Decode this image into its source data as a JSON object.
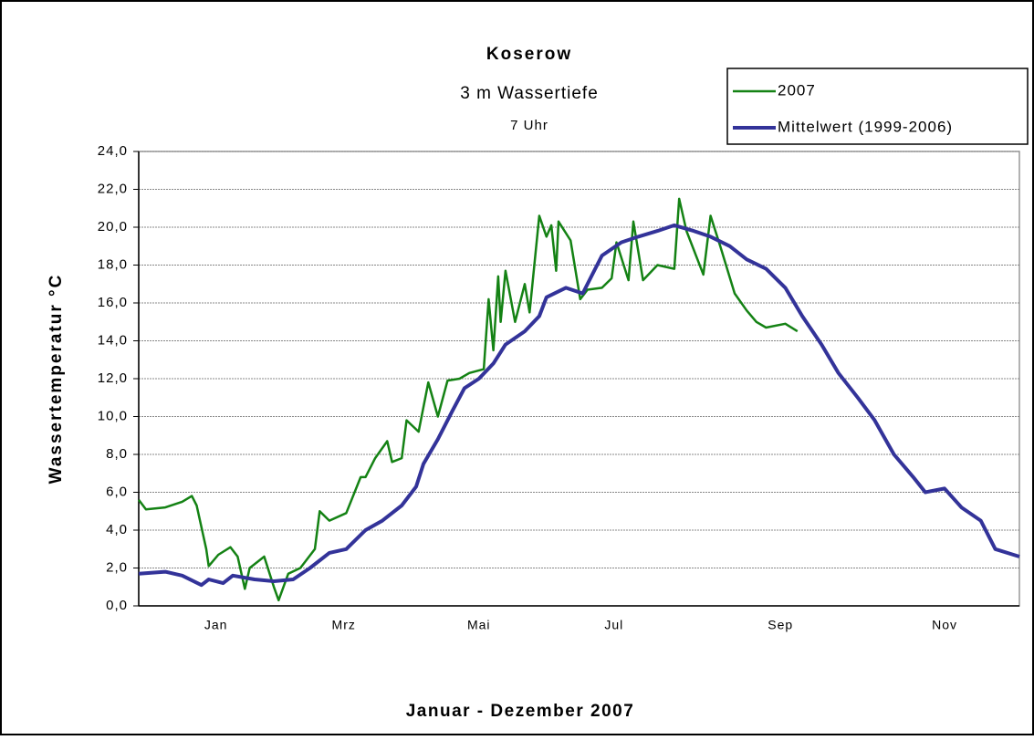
{
  "chart_data": {
    "type": "line",
    "title": "Koserow",
    "subtitle": "3 m Wassertiefe",
    "subtitle2": "7 Uhr",
    "y_label": "Wassertemperatur °C",
    "x_label": "Januar - Dezember 2007",
    "xlim": [
      0,
      365
    ],
    "xticks": [
      {
        "value": 32,
        "label": "Jan"
      },
      {
        "value": 85,
        "label": "Mrz"
      },
      {
        "value": 141,
        "label": "Mai"
      },
      {
        "value": 197,
        "label": "Jul"
      },
      {
        "value": 266,
        "label": "Sep"
      },
      {
        "value": 334,
        "label": "Nov"
      }
    ],
    "ylim": [
      0,
      24
    ],
    "yticks": [
      {
        "value": 0,
        "label": "0,0"
      },
      {
        "value": 2,
        "label": "2,0"
      },
      {
        "value": 4,
        "label": "4,0"
      },
      {
        "value": 6,
        "label": "6,0"
      },
      {
        "value": 8,
        "label": "8,0"
      },
      {
        "value": 10,
        "label": "10,0"
      },
      {
        "value": 12,
        "label": "12,0"
      },
      {
        "value": 14,
        "label": "14,0"
      },
      {
        "value": 16,
        "label": "16,0"
      },
      {
        "value": 18,
        "label": "18,0"
      },
      {
        "value": 20,
        "label": "20,0"
      },
      {
        "value": 22,
        "label": "22,0"
      },
      {
        "value": 24,
        "label": "24,0"
      }
    ],
    "grid": true,
    "legend": "top-right",
    "series": [
      {
        "name": "2007",
        "color": "#148214",
        "width": 2.5,
        "x": [
          0,
          3,
          11,
          18,
          22,
          24,
          28,
          29,
          33,
          38,
          41,
          44,
          46,
          52,
          56,
          58,
          62,
          67,
          73,
          75,
          79,
          86,
          92,
          94,
          98,
          103,
          105,
          109,
          111,
          116,
          120,
          124,
          128,
          133,
          137,
          143,
          145,
          147,
          149,
          150,
          152,
          156,
          160,
          162,
          166,
          169,
          171,
          173,
          174,
          179,
          183,
          186,
          192,
          196,
          198,
          203,
          205,
          209,
          215,
          222,
          224,
          227,
          234,
          237,
          241,
          247,
          252,
          256,
          260,
          268,
          273
        ],
        "values": [
          5.6,
          5.1,
          5.2,
          5.5,
          5.8,
          5.3,
          3.0,
          2.1,
          2.7,
          3.1,
          2.6,
          0.9,
          2.0,
          2.6,
          1.0,
          0.3,
          1.7,
          2.0,
          3.0,
          5.0,
          4.5,
          4.9,
          6.8,
          6.8,
          7.8,
          8.7,
          7.6,
          7.8,
          9.8,
          9.2,
          11.8,
          10.0,
          11.9,
          12.0,
          12.3,
          12.5,
          16.2,
          13.5,
          17.4,
          15.0,
          17.7,
          15.0,
          17.0,
          15.5,
          20.6,
          19.5,
          20.1,
          17.7,
          20.3,
          19.3,
          16.2,
          16.7,
          16.8,
          17.3,
          19.2,
          17.2,
          20.3,
          17.2,
          18.0,
          17.8,
          21.5,
          19.8,
          17.5,
          20.6,
          19.0,
          16.5,
          15.6,
          15.0,
          14.7,
          14.9,
          14.5
        ]
      },
      {
        "name": "Mittelwert (1999-2006)",
        "color": "#333399",
        "width": 4,
        "x": [
          0,
          11,
          18,
          26,
          29,
          35,
          39,
          48,
          56,
          64,
          71,
          79,
          86,
          94,
          101,
          109,
          115,
          118,
          124,
          130,
          135,
          141,
          147,
          152,
          160,
          166,
          169,
          177,
          184,
          188,
          192,
          200,
          207,
          215,
          222,
          230,
          237,
          245,
          252,
          260,
          268,
          275,
          283,
          290,
          298,
          305,
          313,
          321,
          326,
          334,
          341,
          349,
          355,
          365
        ],
        "values": [
          1.7,
          1.8,
          1.6,
          1.1,
          1.4,
          1.2,
          1.6,
          1.4,
          1.3,
          1.4,
          2.0,
          2.8,
          3.0,
          4.0,
          4.5,
          5.3,
          6.3,
          7.5,
          8.8,
          10.3,
          11.5,
          12.0,
          12.8,
          13.8,
          14.5,
          15.3,
          16.3,
          16.8,
          16.5,
          17.5,
          18.5,
          19.2,
          19.5,
          19.8,
          20.1,
          19.8,
          19.5,
          19.0,
          18.3,
          17.8,
          16.8,
          15.3,
          13.8,
          12.3,
          11.0,
          9.8,
          8.0,
          6.8,
          6.0,
          6.2,
          5.2,
          4.5,
          3.0,
          2.6
        ]
      }
    ]
  }
}
